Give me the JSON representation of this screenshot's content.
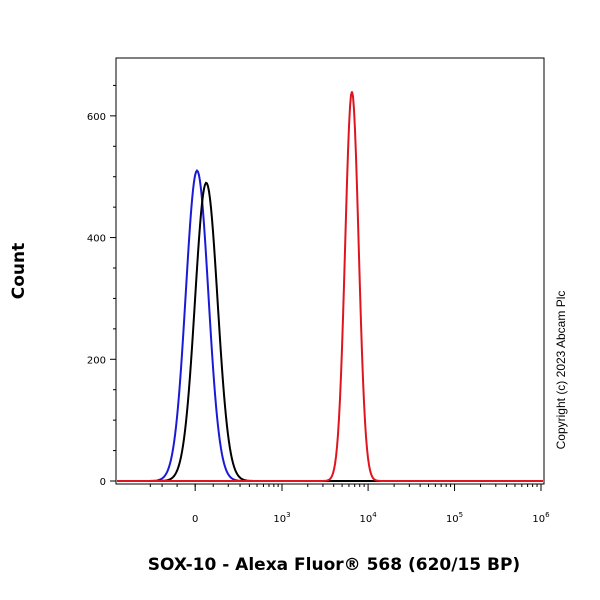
{
  "chart_data": {
    "type": "line",
    "title": "",
    "xlabel": "SOX-10 - Alexa Fluor® 568 (620/15 BP)",
    "ylabel": "Count",
    "x_scale": "biexponential",
    "xlim": [
      -300,
      1000000
    ],
    "ylim": [
      0,
      700
    ],
    "y_ticks": [
      0,
      200,
      400,
      600
    ],
    "x_tick_labels": [
      {
        "value": 0,
        "base": "0",
        "exp": ""
      },
      {
        "value": 1000,
        "base": "10",
        "exp": "3"
      },
      {
        "value": 10000,
        "base": "10",
        "exp": "4"
      },
      {
        "value": 100000,
        "base": "10",
        "exp": "5"
      },
      {
        "value": 1000000,
        "base": "10",
        "exp": "6"
      }
    ],
    "grid": false,
    "legend": "none",
    "annotation": "Copyright (c) 2023 Abcam Plc",
    "series": [
      {
        "color": "#1a1ad6",
        "peak_x": 10,
        "peak_count": 510,
        "width": 0.3
      },
      {
        "color": "#000000",
        "peak_x": 60,
        "peak_count": 490,
        "width": 0.3
      },
      {
        "color": "#e0141e",
        "peak_x": 6500,
        "peak_count": 640,
        "width": 0.18
      }
    ]
  }
}
